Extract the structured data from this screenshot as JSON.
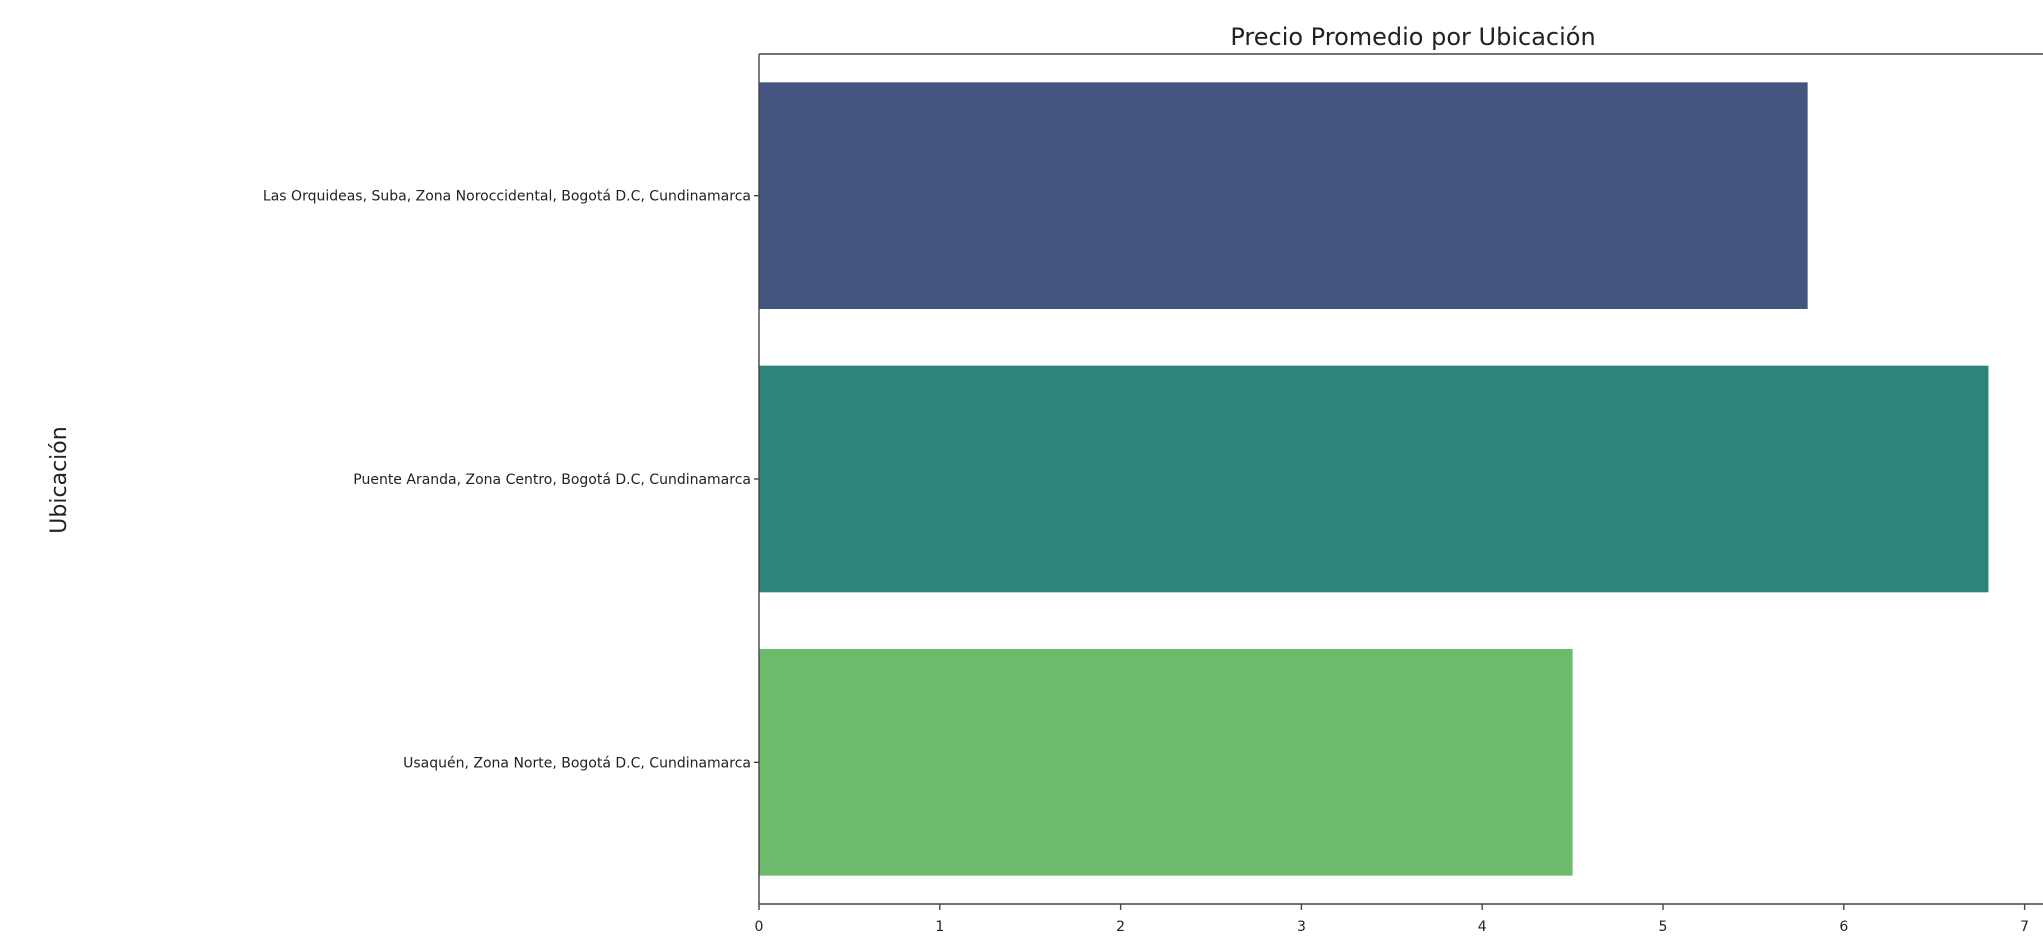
{
  "chart_data": {
    "type": "bar",
    "orientation": "horizontal",
    "title": "Precio Promedio por Ubicación",
    "xlabel": "",
    "ylabel": "Ubicación",
    "categories": [
      "Las Orquideas, Suba, Zona Noroccidental, Bogotá D.C, Cundinamarca",
      "Puente Aranda, Zona Centro, Bogotá D.C, Cundinamarca",
      "Usaquén, Zona Norte, Bogotá D.C, Cundinamarca"
    ],
    "values": [
      5.8,
      6.8,
      4.5
    ],
    "colors": [
      "#44557f",
      "#2e837a",
      "#6cbb6c"
    ],
    "xlim": [
      0,
      7
    ],
    "xticks": [
      0,
      1,
      2,
      3,
      4,
      5,
      6,
      7
    ],
    "grid": false,
    "legend": "none"
  }
}
